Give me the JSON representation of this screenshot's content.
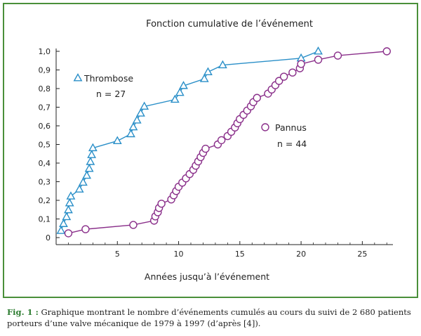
{
  "chart_data": {
    "type": "line",
    "title": "Fonction cumulative de l’événement",
    "xlabel": "Années jusqu’à l’événement",
    "ylabel": "",
    "xlim": [
      0,
      27.5
    ],
    "ylim": [
      0,
      1.0
    ],
    "xticks": [
      "5",
      "10",
      "15",
      "20",
      "25"
    ],
    "xtick_values": [
      5,
      10,
      15,
      20,
      25
    ],
    "yticks": [
      "0",
      "0,1",
      "0,2",
      "0,3",
      "0,4",
      "0,5",
      "0,6",
      "0,7",
      "0,8",
      "0,9",
      "1,0"
    ],
    "ytick_values": [
      0,
      0.1,
      0.2,
      0.3,
      0.4,
      0.5,
      0.6,
      0.7,
      0.8,
      0.9,
      1.0
    ],
    "series": [
      {
        "name": "Thrombose",
        "note": "n = 27",
        "marker": "triangle",
        "color": "#2a8fc8",
        "x": [
          0.4,
          0.6,
          0.85,
          1.0,
          1.1,
          1.2,
          1.9,
          2.2,
          2.5,
          2.7,
          2.8,
          2.9,
          3.0,
          5.0,
          6.1,
          6.3,
          6.6,
          6.9,
          7.2,
          9.7,
          10.1,
          10.4,
          12.1,
          12.4,
          13.6,
          20.0,
          21.4
        ],
        "y": [
          0.037,
          0.074,
          0.111,
          0.148,
          0.185,
          0.222,
          0.259,
          0.296,
          0.333,
          0.37,
          0.407,
          0.444,
          0.481,
          0.519,
          0.556,
          0.593,
          0.63,
          0.667,
          0.704,
          0.741,
          0.778,
          0.815,
          0.852,
          0.889,
          0.926,
          0.963,
          1.0
        ]
      },
      {
        "name": "Pannus",
        "note": "n = 44",
        "marker": "circle",
        "color": "#8a2f8a",
        "x": [
          1.0,
          2.4,
          6.3,
          8.0,
          8.1,
          8.3,
          8.4,
          8.6,
          9.4,
          9.6,
          9.8,
          10.0,
          10.3,
          10.6,
          10.9,
          11.2,
          11.4,
          11.6,
          11.8,
          12.0,
          12.2,
          13.2,
          13.5,
          14.0,
          14.3,
          14.6,
          14.8,
          15.0,
          15.3,
          15.6,
          15.9,
          16.1,
          16.4,
          17.3,
          17.6,
          17.9,
          18.2,
          18.6,
          19.3,
          19.9,
          20.0,
          21.4,
          23.0,
          27.0
        ],
        "y": [
          0.023,
          0.045,
          0.068,
          0.091,
          0.114,
          0.136,
          0.159,
          0.182,
          0.205,
          0.227,
          0.25,
          0.273,
          0.295,
          0.318,
          0.341,
          0.364,
          0.386,
          0.409,
          0.432,
          0.455,
          0.477,
          0.5,
          0.523,
          0.545,
          0.568,
          0.591,
          0.614,
          0.636,
          0.659,
          0.682,
          0.705,
          0.727,
          0.75,
          0.773,
          0.795,
          0.818,
          0.841,
          0.864,
          0.886,
          0.909,
          0.932,
          0.955,
          0.977,
          1.0
        ]
      }
    ],
    "grid": false,
    "legend_position": "inline"
  },
  "caption": {
    "fig_label": "Fig. 1 :",
    "text": " Graphique montrant le nombre d’événements cumulés au cours du suivi de 2 680 patients porteurs d’une valve mécanique de 1979 à 1997 (d’après [4])."
  }
}
